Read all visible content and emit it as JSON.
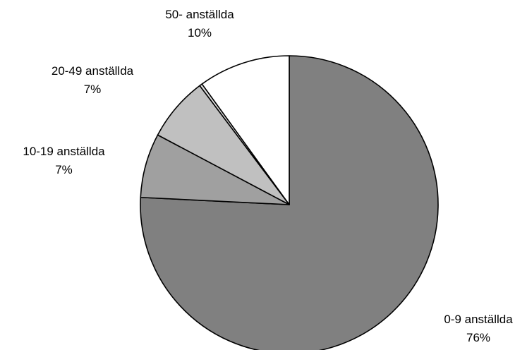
{
  "chart_data": {
    "type": "pie",
    "title": "",
    "legend": "none",
    "slices": [
      {
        "label": "0-9 anställda",
        "value": 76,
        "percent_label": "76%",
        "color": "#808080"
      },
      {
        "label": "10-19 anställda",
        "value": 7,
        "percent_label": "7%",
        "color": "#a0a0a0"
      },
      {
        "label": "20-49 anställda",
        "value": 7,
        "percent_label": "7%",
        "color": "#c0c0c0"
      },
      {
        "label": "",
        "value": 0.3,
        "percent_label": "",
        "color": "#e0e0e0"
      },
      {
        "label": "50- anställda",
        "value": 10,
        "percent_label": "10%",
        "color": "#ffffff"
      }
    ]
  }
}
